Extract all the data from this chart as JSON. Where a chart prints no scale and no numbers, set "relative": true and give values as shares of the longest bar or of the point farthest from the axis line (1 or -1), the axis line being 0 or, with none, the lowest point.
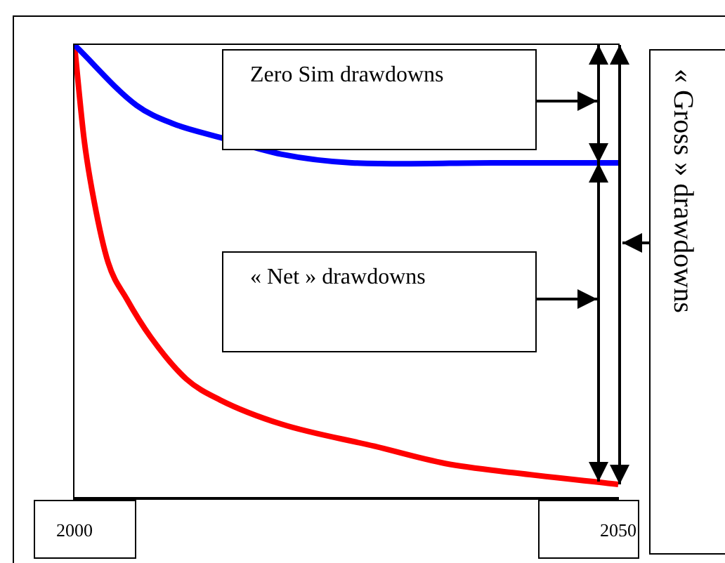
{
  "chart_data": {
    "type": "line",
    "relative": true,
    "xlim": [
      2000,
      2050
    ],
    "xticks": [
      2000,
      2050
    ],
    "grid": false,
    "legend": false,
    "marker": "none",
    "line_style": "solid",
    "annotations": [
      "Zero Sim drawdowns",
      "« Net » drawdowns",
      "« Gross » drawdowns"
    ],
    "series": [
      {
        "color": "#0000ff",
        "x": [
          2000,
          2005.7,
          2009,
          2013.4,
          2019,
          2025.5,
          2030.6,
          2038.4,
          2050
        ],
        "values": [
          1,
          0.867,
          0.827,
          0.796,
          0.759,
          0.74,
          0.738,
          0.74,
          0.74
        ]
      },
      {
        "color": "#ff0000",
        "x": [
          2000,
          2000.9,
          2001.8,
          2003.1,
          2004.8,
          2007,
          2010.3,
          2013.4,
          2019,
          2027.6,
          2034.1,
          2040.6,
          2050
        ],
        "values": [
          1,
          0.789,
          0.656,
          0.52,
          0.44,
          0.356,
          0.263,
          0.217,
          0.164,
          0.115,
          0.077,
          0.056,
          0.031
        ]
      }
    ]
  }
}
